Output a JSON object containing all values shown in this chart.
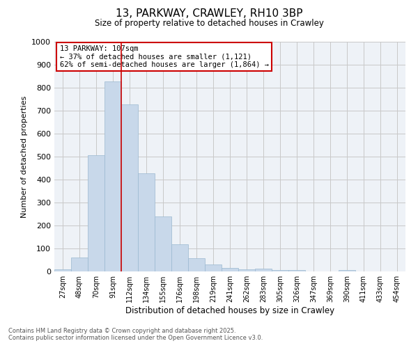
{
  "title": "13, PARKWAY, CRAWLEY, RH10 3BP",
  "subtitle": "Size of property relative to detached houses in Crawley",
  "xlabel": "Distribution of detached houses by size in Crawley",
  "ylabel": "Number of detached properties",
  "footer_line1": "Contains HM Land Registry data © Crown copyright and database right 2025.",
  "footer_line2": "Contains public sector information licensed under the Open Government Licence v3.0.",
  "bar_color": "#c8d8ea",
  "bar_edge_color": "#9ab8d0",
  "grid_color": "#c8c8c8",
  "background_color": "#eef2f7",
  "vline_color": "#cc0000",
  "annotation_box_edgecolor": "#cc0000",
  "categories": [
    "27sqm",
    "48sqm",
    "70sqm",
    "91sqm",
    "112sqm",
    "134sqm",
    "155sqm",
    "176sqm",
    "198sqm",
    "219sqm",
    "241sqm",
    "262sqm",
    "283sqm",
    "305sqm",
    "326sqm",
    "347sqm",
    "369sqm",
    "390sqm",
    "411sqm",
    "433sqm",
    "454sqm"
  ],
  "values": [
    8,
    60,
    507,
    827,
    727,
    428,
    238,
    117,
    57,
    30,
    15,
    10,
    12,
    7,
    5,
    0,
    0,
    5,
    0,
    0,
    0
  ],
  "ylim": [
    0,
    1000
  ],
  "yticks": [
    0,
    100,
    200,
    300,
    400,
    500,
    600,
    700,
    800,
    900,
    1000
  ],
  "vline_position": 3.5,
  "annotation_line1": "13 PARKWAY: 107sqm",
  "annotation_line2": "← 37% of detached houses are smaller (1,121)",
  "annotation_line3": "62% of semi-detached houses are larger (1,864) →"
}
